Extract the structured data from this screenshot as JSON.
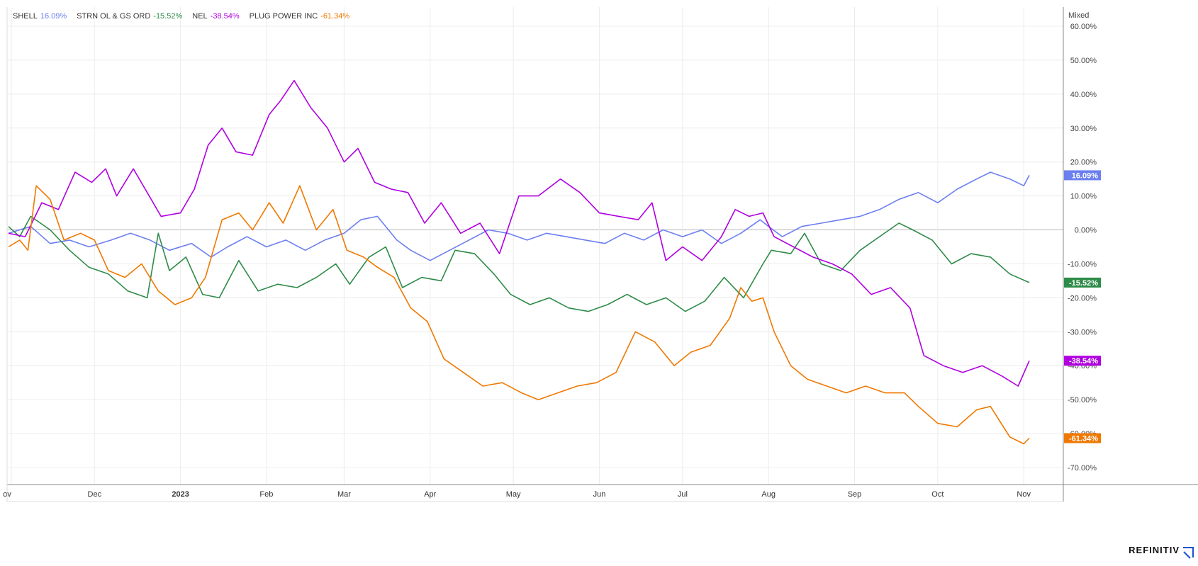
{
  "brand": {
    "name": "REFINITIV",
    "logo_icon": "refinitiv-logo-icon"
  },
  "chart_data": {
    "type": "line",
    "scale_mode": "Mixed",
    "grid": true,
    "legend_position": "top-left",
    "x_range": [
      "2022-10-31",
      "2023-11-03"
    ],
    "ylim": [
      -75,
      62
    ],
    "y_ticks": [
      "60.00%",
      "50.00%",
      "40.00%",
      "30.00%",
      "20.00%",
      "10.00%",
      "0.00%",
      "-10.00%",
      "-20.00%",
      "-30.00%",
      "-40.00%",
      "-50.00%",
      "-60.00%",
      "-70.00%"
    ],
    "y_tick_values": [
      60,
      50,
      40,
      30,
      20,
      10,
      0,
      -10,
      -20,
      -30,
      -40,
      -50,
      -60,
      -70
    ],
    "x_ticks": [
      {
        "label": "ov",
        "date": "2022-11-01"
      },
      {
        "label": "Dec",
        "date": "2022-12-01"
      },
      {
        "label": "2023",
        "date": "2023-01-01",
        "bold": true
      },
      {
        "label": "Feb",
        "date": "2023-02-01"
      },
      {
        "label": "Mar",
        "date": "2023-03-01"
      },
      {
        "label": "Apr",
        "date": "2023-04-01"
      },
      {
        "label": "May",
        "date": "2023-05-01"
      },
      {
        "label": "Jun",
        "date": "2023-06-01"
      },
      {
        "label": "Jul",
        "date": "2023-07-01"
      },
      {
        "label": "Aug",
        "date": "2023-08-01"
      },
      {
        "label": "Sep",
        "date": "2023-09-01"
      },
      {
        "label": "Oct",
        "date": "2023-10-01"
      },
      {
        "label": "Nov",
        "date": "2023-11-01"
      }
    ],
    "series": [
      {
        "name": "SHELL",
        "change_label": "16.09%",
        "color": "#6b7ff0",
        "points": [
          [
            "2022-10-31",
            -1
          ],
          [
            "2022-11-08",
            1
          ],
          [
            "2022-11-15",
            -4
          ],
          [
            "2022-11-22",
            -3
          ],
          [
            "2022-11-29",
            -5
          ],
          [
            "2022-12-07",
            -3
          ],
          [
            "2022-12-14",
            -1
          ],
          [
            "2022-12-21",
            -3
          ],
          [
            "2022-12-28",
            -6
          ],
          [
            "2023-01-05",
            -4
          ],
          [
            "2023-01-12",
            -8
          ],
          [
            "2023-01-18",
            -5
          ],
          [
            "2023-01-25",
            -2
          ],
          [
            "2023-02-01",
            -5
          ],
          [
            "2023-02-08",
            -3
          ],
          [
            "2023-02-15",
            -6
          ],
          [
            "2023-02-22",
            -3
          ],
          [
            "2023-03-01",
            -1
          ],
          [
            "2023-03-07",
            3
          ],
          [
            "2023-03-13",
            4
          ],
          [
            "2023-03-20",
            -3
          ],
          [
            "2023-03-25",
            -6
          ],
          [
            "2023-04-01",
            -9
          ],
          [
            "2023-04-08",
            -6
          ],
          [
            "2023-04-15",
            -3
          ],
          [
            "2023-04-22",
            0
          ],
          [
            "2023-04-29",
            -1
          ],
          [
            "2023-05-06",
            -3
          ],
          [
            "2023-05-13",
            -1
          ],
          [
            "2023-05-20",
            -2
          ],
          [
            "2023-05-27",
            -3
          ],
          [
            "2023-06-03",
            -4
          ],
          [
            "2023-06-10",
            -1
          ],
          [
            "2023-06-17",
            -3
          ],
          [
            "2023-06-24",
            0
          ],
          [
            "2023-07-01",
            -2
          ],
          [
            "2023-07-08",
            0
          ],
          [
            "2023-07-15",
            -4
          ],
          [
            "2023-07-22",
            -1
          ],
          [
            "2023-07-29",
            3
          ],
          [
            "2023-08-01",
            1
          ],
          [
            "2023-08-06",
            -2
          ],
          [
            "2023-08-13",
            1
          ],
          [
            "2023-08-20",
            2
          ],
          [
            "2023-08-27",
            3
          ],
          [
            "2023-09-03",
            4
          ],
          [
            "2023-09-10",
            6
          ],
          [
            "2023-09-17",
            9
          ],
          [
            "2023-09-24",
            11
          ],
          [
            "2023-10-01",
            8
          ],
          [
            "2023-10-08",
            12
          ],
          [
            "2023-10-15",
            15
          ],
          [
            "2023-10-20",
            17
          ],
          [
            "2023-10-27",
            15
          ],
          [
            "2023-11-01",
            13
          ],
          [
            "2023-11-03",
            16.09
          ]
        ]
      },
      {
        "name": "STRN OL & GS ORD",
        "change_label": "-15.52%",
        "color": "#2e8b48",
        "points": [
          [
            "2022-10-31",
            1
          ],
          [
            "2022-11-04",
            -2
          ],
          [
            "2022-11-08",
            4
          ],
          [
            "2022-11-15",
            0
          ],
          [
            "2022-11-22",
            -6
          ],
          [
            "2022-11-29",
            -11
          ],
          [
            "2022-12-06",
            -13
          ],
          [
            "2022-12-13",
            -18
          ],
          [
            "2022-12-20",
            -20
          ],
          [
            "2022-12-24",
            -1
          ],
          [
            "2022-12-28",
            -12
          ],
          [
            "2023-01-03",
            -8
          ],
          [
            "2023-01-09",
            -19
          ],
          [
            "2023-01-15",
            -20
          ],
          [
            "2023-01-22",
            -9
          ],
          [
            "2023-01-29",
            -18
          ],
          [
            "2023-02-05",
            -16
          ],
          [
            "2023-02-12",
            -17
          ],
          [
            "2023-02-19",
            -14
          ],
          [
            "2023-02-26",
            -10
          ],
          [
            "2023-03-03",
            -16
          ],
          [
            "2023-03-10",
            -8
          ],
          [
            "2023-03-16",
            -5
          ],
          [
            "2023-03-22",
            -17
          ],
          [
            "2023-03-29",
            -14
          ],
          [
            "2023-04-05",
            -15
          ],
          [
            "2023-04-10",
            -6
          ],
          [
            "2023-04-17",
            -7
          ],
          [
            "2023-04-24",
            -13
          ],
          [
            "2023-04-30",
            -19
          ],
          [
            "2023-05-07",
            -22
          ],
          [
            "2023-05-14",
            -20
          ],
          [
            "2023-05-21",
            -23
          ],
          [
            "2023-05-28",
            -24
          ],
          [
            "2023-06-04",
            -22
          ],
          [
            "2023-06-11",
            -19
          ],
          [
            "2023-06-18",
            -22
          ],
          [
            "2023-06-25",
            -20
          ],
          [
            "2023-07-02",
            -24
          ],
          [
            "2023-07-09",
            -21
          ],
          [
            "2023-07-16",
            -14
          ],
          [
            "2023-07-23",
            -20
          ],
          [
            "2023-07-30",
            -10
          ],
          [
            "2023-08-02",
            -6
          ],
          [
            "2023-08-09",
            -7
          ],
          [
            "2023-08-14",
            -1
          ],
          [
            "2023-08-20",
            -10
          ],
          [
            "2023-08-27",
            -12
          ],
          [
            "2023-09-03",
            -6
          ],
          [
            "2023-09-10",
            -2
          ],
          [
            "2023-09-17",
            2
          ],
          [
            "2023-09-22",
            0
          ],
          [
            "2023-09-29",
            -3
          ],
          [
            "2023-10-06",
            -10
          ],
          [
            "2023-10-13",
            -7
          ],
          [
            "2023-10-20",
            -8
          ],
          [
            "2023-10-27",
            -13
          ],
          [
            "2023-11-03",
            -15.52
          ]
        ]
      },
      {
        "name": "NEL",
        "change_label": "-38.54%",
        "color": "#b000e0",
        "points": [
          [
            "2022-10-31",
            -1
          ],
          [
            "2022-11-06",
            -2
          ],
          [
            "2022-11-12",
            8
          ],
          [
            "2022-11-18",
            6
          ],
          [
            "2022-11-24",
            17
          ],
          [
            "2022-11-30",
            14
          ],
          [
            "2022-12-05",
            18
          ],
          [
            "2022-12-09",
            10
          ],
          [
            "2022-12-15",
            18
          ],
          [
            "2022-12-20",
            11
          ],
          [
            "2022-12-25",
            4
          ],
          [
            "2023-01-01",
            5
          ],
          [
            "2023-01-06",
            12
          ],
          [
            "2023-01-11",
            25
          ],
          [
            "2023-01-16",
            30
          ],
          [
            "2023-01-21",
            23
          ],
          [
            "2023-01-27",
            22
          ],
          [
            "2023-02-02",
            34
          ],
          [
            "2023-02-06",
            38
          ],
          [
            "2023-02-11",
            44
          ],
          [
            "2023-02-17",
            36
          ],
          [
            "2023-02-23",
            30
          ],
          [
            "2023-03-01",
            20
          ],
          [
            "2023-03-06",
            24
          ],
          [
            "2023-03-12",
            14
          ],
          [
            "2023-03-18",
            12
          ],
          [
            "2023-03-24",
            11
          ],
          [
            "2023-03-30",
            2
          ],
          [
            "2023-04-05",
            8
          ],
          [
            "2023-04-12",
            -1
          ],
          [
            "2023-04-19",
            2
          ],
          [
            "2023-04-26",
            -7
          ],
          [
            "2023-05-03",
            10
          ],
          [
            "2023-05-10",
            10
          ],
          [
            "2023-05-18",
            15
          ],
          [
            "2023-05-25",
            11
          ],
          [
            "2023-06-01",
            5
          ],
          [
            "2023-06-08",
            4
          ],
          [
            "2023-06-15",
            3
          ],
          [
            "2023-06-20",
            8
          ],
          [
            "2023-06-25",
            -9
          ],
          [
            "2023-07-01",
            -5
          ],
          [
            "2023-07-08",
            -9
          ],
          [
            "2023-07-15",
            -2
          ],
          [
            "2023-07-20",
            6
          ],
          [
            "2023-07-25",
            4
          ],
          [
            "2023-07-30",
            5
          ],
          [
            "2023-08-03",
            -2
          ],
          [
            "2023-08-10",
            -5
          ],
          [
            "2023-08-17",
            -8
          ],
          [
            "2023-08-24",
            -10
          ],
          [
            "2023-08-31",
            -13
          ],
          [
            "2023-09-07",
            -19
          ],
          [
            "2023-09-14",
            -17
          ],
          [
            "2023-09-21",
            -23
          ],
          [
            "2023-09-26",
            -37
          ],
          [
            "2023-10-03",
            -40
          ],
          [
            "2023-10-10",
            -42
          ],
          [
            "2023-10-17",
            -40
          ],
          [
            "2023-10-24",
            -43
          ],
          [
            "2023-10-30",
            -46
          ],
          [
            "2023-11-03",
            -38.54
          ]
        ]
      },
      {
        "name": "PLUG POWER INC",
        "change_label": "-61.34%",
        "color": "#f07800",
        "points": [
          [
            "2022-10-31",
            -5
          ],
          [
            "2022-11-04",
            -3
          ],
          [
            "2022-11-07",
            -6
          ],
          [
            "2022-11-10",
            13
          ],
          [
            "2022-11-15",
            9
          ],
          [
            "2022-11-20",
            -3
          ],
          [
            "2022-11-26",
            -1
          ],
          [
            "2022-12-01",
            -3
          ],
          [
            "2022-12-06",
            -12
          ],
          [
            "2022-12-12",
            -14
          ],
          [
            "2022-12-18",
            -10
          ],
          [
            "2022-12-24",
            -18
          ],
          [
            "2022-12-30",
            -22
          ],
          [
            "2023-01-05",
            -20
          ],
          [
            "2023-01-10",
            -14
          ],
          [
            "2023-01-16",
            3
          ],
          [
            "2023-01-22",
            5
          ],
          [
            "2023-01-27",
            0
          ],
          [
            "2023-02-02",
            8
          ],
          [
            "2023-02-07",
            2
          ],
          [
            "2023-02-13",
            13
          ],
          [
            "2023-02-19",
            0
          ],
          [
            "2023-02-25",
            6
          ],
          [
            "2023-03-02",
            -6
          ],
          [
            "2023-03-08",
            -8
          ],
          [
            "2023-03-13",
            -11
          ],
          [
            "2023-03-19",
            -14
          ],
          [
            "2023-03-25",
            -23
          ],
          [
            "2023-03-31",
            -27
          ],
          [
            "2023-04-06",
            -38
          ],
          [
            "2023-04-13",
            -42
          ],
          [
            "2023-04-20",
            -46
          ],
          [
            "2023-04-27",
            -45
          ],
          [
            "2023-05-04",
            -48
          ],
          [
            "2023-05-10",
            -50
          ],
          [
            "2023-05-17",
            -48
          ],
          [
            "2023-05-24",
            -46
          ],
          [
            "2023-05-31",
            -45
          ],
          [
            "2023-06-07",
            -42
          ],
          [
            "2023-06-14",
            -30
          ],
          [
            "2023-06-21",
            -33
          ],
          [
            "2023-06-28",
            -40
          ],
          [
            "2023-07-04",
            -36
          ],
          [
            "2023-07-11",
            -34
          ],
          [
            "2023-07-18",
            -26
          ],
          [
            "2023-07-22",
            -17
          ],
          [
            "2023-07-26",
            -21
          ],
          [
            "2023-07-30",
            -20
          ],
          [
            "2023-08-03",
            -30
          ],
          [
            "2023-08-09",
            -40
          ],
          [
            "2023-08-15",
            -44
          ],
          [
            "2023-08-22",
            -46
          ],
          [
            "2023-08-29",
            -48
          ],
          [
            "2023-09-05",
            -46
          ],
          [
            "2023-09-12",
            -48
          ],
          [
            "2023-09-19",
            -48
          ],
          [
            "2023-09-24",
            -52
          ],
          [
            "2023-10-01",
            -57
          ],
          [
            "2023-10-08",
            -58
          ],
          [
            "2023-10-15",
            -53
          ],
          [
            "2023-10-20",
            -52
          ],
          [
            "2023-10-27",
            -61
          ],
          [
            "2023-11-01",
            -63
          ],
          [
            "2023-11-03",
            -61.34
          ]
        ]
      }
    ]
  }
}
